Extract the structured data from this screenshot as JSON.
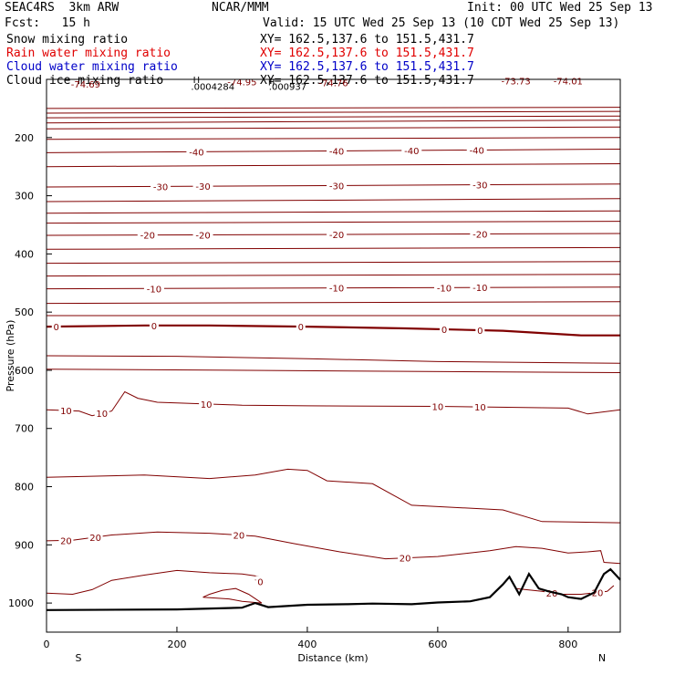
{
  "header": {
    "model": "SEAC4RS  3km ARW",
    "center": "NCAR/MMM",
    "init": "Init: 00 UTC Wed 25 Sep 13",
    "fcst": "Fcst:   15 h",
    "valid": "Valid: 15 UTC Wed 25 Sep 13 (10 CDT Wed 25 Sep 13)",
    "fields": [
      {
        "label": "Snow mixing ratio",
        "xy": "XY= 162.5,137.6 to 151.5,431.7",
        "color": "#000000"
      },
      {
        "label": "Rain water mixing ratio",
        "xy": "XY= 162.5,137.6 to 151.5,431.7",
        "color": "#e00000"
      },
      {
        "label": "Cloud water mixing ratio",
        "xy": "XY= 162.5,137.6 to 151.5,431.7",
        "color": "#0000c8"
      },
      {
        "label": "Cloud ice mixing ratio",
        "xy": "XY= 162.5,137.6 to 151.5,431.7",
        "color": "#000000"
      }
    ]
  },
  "chart_data": {
    "type": "contour",
    "xlabel": "Distance (km)",
    "ylabel": "Pressure (hPa)",
    "xlim": [
      0,
      880
    ],
    "ylim": [
      1050,
      100
    ],
    "x_ticks": [
      0,
      200,
      400,
      600,
      800
    ],
    "y_ticks": [
      200,
      300,
      400,
      500,
      600,
      700,
      800,
      900,
      1000
    ],
    "x_end_labels": {
      "left": "S",
      "right": "N"
    },
    "contour_color": "#800000",
    "extrema_labels": [
      {
        "text": "-74.69",
        "x": 60,
        "p": 114
      },
      {
        "text": "H",
        "x": 230,
        "p": 106
      },
      {
        "text": ".0004284",
        "x": 255,
        "p": 118
      },
      {
        "text": "-74.95",
        "x": 300,
        "p": 110
      },
      {
        "text": "H",
        "x": 345,
        "p": 110
      },
      {
        "text": ".000937",
        "x": 370,
        "p": 118
      },
      {
        "text": "-74.76",
        "x": 440,
        "p": 112
      },
      {
        "text": "-73.73",
        "x": 720,
        "p": 109
      },
      {
        "text": "-74.01",
        "x": 800,
        "p": 109
      }
    ],
    "isotherms": [
      {
        "points": [
          [
            0,
            150
          ],
          [
            880,
            148
          ]
        ],
        "labels": []
      },
      {
        "points": [
          [
            0,
            158
          ],
          [
            880,
            155
          ]
        ],
        "labels": []
      },
      {
        "points": [
          [
            0,
            166
          ],
          [
            880,
            163
          ]
        ],
        "labels": []
      },
      {
        "points": [
          [
            0,
            175
          ],
          [
            880,
            170
          ]
        ],
        "labels": []
      },
      {
        "points": [
          [
            0,
            185
          ],
          [
            880,
            182
          ]
        ],
        "labels": []
      },
      {
        "points": [
          [
            0,
            203
          ],
          [
            880,
            200
          ]
        ],
        "labels": []
      },
      {
        "points": [
          [
            0,
            226
          ],
          [
            880,
            220
          ]
        ],
        "labels": [
          {
            "text": "-40",
            "x": 230
          },
          {
            "text": "-40",
            "x": 445
          },
          {
            "text": "-40",
            "x": 560
          },
          {
            "text": "-40",
            "x": 660
          }
        ]
      },
      {
        "points": [
          [
            0,
            250
          ],
          [
            880,
            245
          ]
        ],
        "labels": []
      },
      {
        "points": [
          [
            0,
            285
          ],
          [
            880,
            280
          ]
        ],
        "labels": [
          {
            "text": "-30",
            "x": 175
          },
          {
            "text": "-30",
            "x": 240
          },
          {
            "text": "-30",
            "x": 445
          },
          {
            "text": "-30",
            "x": 665
          }
        ]
      },
      {
        "points": [
          [
            0,
            310
          ],
          [
            880,
            305
          ]
        ],
        "labels": []
      },
      {
        "points": [
          [
            0,
            330
          ],
          [
            880,
            326
          ]
        ],
        "labels": []
      },
      {
        "points": [
          [
            0,
            347
          ],
          [
            880,
            344
          ]
        ],
        "labels": []
      },
      {
        "points": [
          [
            0,
            368
          ],
          [
            880,
            365
          ]
        ],
        "labels": [
          {
            "text": "-20",
            "x": 155
          },
          {
            "text": "-20",
            "x": 240
          },
          {
            "text": "-20",
            "x": 445
          },
          {
            "text": "-20",
            "x": 665
          }
        ]
      },
      {
        "points": [
          [
            0,
            392
          ],
          [
            880,
            389
          ]
        ],
        "labels": []
      },
      {
        "points": [
          [
            0,
            416
          ],
          [
            880,
            413
          ]
        ],
        "labels": []
      },
      {
        "points": [
          [
            0,
            438
          ],
          [
            880,
            435
          ]
        ],
        "labels": []
      },
      {
        "points": [
          [
            0,
            460
          ],
          [
            880,
            457
          ]
        ],
        "labels": [
          {
            "text": "-10",
            "x": 165
          },
          {
            "text": "-10",
            "x": 445
          },
          {
            "text": "-10",
            "x": 610
          },
          {
            "text": "-10",
            "x": 665
          }
        ]
      },
      {
        "points": [
          [
            0,
            485
          ],
          [
            880,
            482
          ]
        ],
        "labels": []
      },
      {
        "points": [
          [
            0,
            506
          ],
          [
            880,
            506
          ]
        ],
        "labels": []
      },
      {
        "points": [
          [
            0,
            525
          ],
          [
            150,
            523
          ],
          [
            250,
            523
          ],
          [
            400,
            525
          ],
          [
            550,
            528
          ],
          [
            700,
            532
          ],
          [
            820,
            540
          ],
          [
            880,
            540
          ]
        ],
        "labels": [
          {
            "text": "0",
            "x": 15
          },
          {
            "text": "0",
            "x": 165
          },
          {
            "text": "0",
            "x": 390
          },
          {
            "text": "0",
            "x": 610
          },
          {
            "text": "0",
            "x": 665
          }
        ],
        "thick": true
      },
      {
        "points": [
          [
            0,
            575
          ],
          [
            200,
            576
          ],
          [
            400,
            580
          ],
          [
            600,
            585
          ],
          [
            880,
            588
          ]
        ],
        "labels": []
      },
      {
        "points": [
          [
            0,
            598
          ],
          [
            880,
            604
          ]
        ],
        "labels": []
      },
      {
        "points": [
          [
            0,
            668
          ],
          [
            50,
            670
          ],
          [
            70,
            678
          ],
          [
            100,
            670
          ],
          [
            120,
            637
          ],
          [
            140,
            648
          ],
          [
            170,
            655
          ],
          [
            300,
            660
          ],
          [
            400,
            661
          ],
          [
            600,
            662
          ],
          [
            800,
            665
          ],
          [
            830,
            675
          ],
          [
            880,
            668
          ]
        ],
        "labels": [
          {
            "text": "10",
            "x": 30
          },
          {
            "text": "10",
            "x": 85
          },
          {
            "text": "10",
            "x": 245
          },
          {
            "text": "10",
            "x": 600
          },
          {
            "text": "10",
            "x": 665
          }
        ]
      },
      {
        "points": [
          [
            0,
            784
          ],
          [
            150,
            780
          ],
          [
            250,
            786
          ],
          [
            320,
            780
          ],
          [
            370,
            770
          ],
          [
            400,
            772
          ],
          [
            430,
            790
          ],
          [
            500,
            795
          ],
          [
            560,
            832
          ],
          [
            700,
            840
          ],
          [
            760,
            860
          ],
          [
            880,
            862
          ]
        ],
        "labels": []
      },
      {
        "points": [
          [
            0,
            893
          ],
          [
            40,
            892
          ],
          [
            100,
            883
          ],
          [
            170,
            878
          ],
          [
            250,
            880
          ],
          [
            320,
            885
          ],
          [
            380,
            898
          ],
          [
            450,
            912
          ],
          [
            520,
            924
          ],
          [
            600,
            920
          ],
          [
            680,
            910
          ],
          [
            720,
            903
          ],
          [
            760,
            906
          ],
          [
            800,
            914
          ],
          [
            830,
            912
          ],
          [
            850,
            910
          ],
          [
            855,
            930
          ],
          [
            880,
            932
          ]
        ],
        "labels": [
          {
            "text": "20",
            "x": 30
          },
          {
            "text": "20",
            "x": 75
          },
          {
            "text": "20",
            "x": 295
          },
          {
            "text": "20",
            "x": 550
          }
        ]
      },
      {
        "points": [
          [
            0,
            983
          ],
          [
            40,
            985
          ],
          [
            70,
            977
          ],
          [
            100,
            961
          ],
          [
            150,
            952
          ],
          [
            200,
            944
          ],
          [
            250,
            948
          ],
          [
            300,
            950
          ],
          [
            330,
            955
          ]
        ],
        "labels": []
      },
      {
        "points": [
          [
            240,
            990
          ],
          [
            280,
            993
          ],
          [
            300,
            997
          ],
          [
            330,
            1000
          ],
          [
            310,
            985
          ],
          [
            290,
            975
          ],
          [
            270,
            978
          ],
          [
            250,
            985
          ],
          [
            240,
            990
          ]
        ],
        "labels": []
      },
      {
        "points": [
          [
            720,
            975
          ],
          [
            760,
            980
          ],
          [
            790,
            985
          ],
          [
            820,
            985
          ],
          [
            860,
            980
          ],
          [
            870,
            970
          ]
        ],
        "labels": [
          {
            "text": "20",
            "x": 775
          },
          {
            "text": "20",
            "x": 845
          }
        ]
      },
      {
        "points": [
          [
            320,
            960
          ],
          [
            335,
            965
          ]
        ],
        "labels": [
          {
            "text": "0",
            "x": 328
          }
        ]
      }
    ],
    "terrain": [
      [
        0,
        1012
      ],
      [
        200,
        1011
      ],
      [
        300,
        1008
      ],
      [
        320,
        1000
      ],
      [
        340,
        1007
      ],
      [
        400,
        1003
      ],
      [
        460,
        1002
      ],
      [
        500,
        1001
      ],
      [
        560,
        1002
      ],
      [
        600,
        999
      ],
      [
        650,
        997
      ],
      [
        680,
        990
      ],
      [
        700,
        968
      ],
      [
        710,
        955
      ],
      [
        725,
        985
      ],
      [
        740,
        950
      ],
      [
        755,
        975
      ],
      [
        770,
        980
      ],
      [
        790,
        985
      ],
      [
        800,
        990
      ],
      [
        820,
        993
      ],
      [
        840,
        982
      ],
      [
        855,
        950
      ],
      [
        865,
        942
      ],
      [
        880,
        960
      ]
    ]
  }
}
